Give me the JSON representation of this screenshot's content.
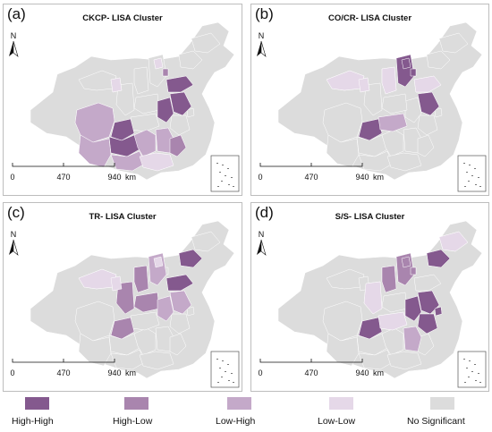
{
  "colors": {
    "high_high": "#84598e",
    "high_low": "#a985ae",
    "low_high": "#c4a9c9",
    "low_low": "#e5d8e8",
    "no_significant": "#dcdcdc",
    "border": "#ffffff"
  },
  "panels": [
    {
      "letter": "(a)",
      "title": "CKCP- LISA Cluster",
      "scale": {
        "ticks": [
          "0",
          "470",
          "940"
        ],
        "unit": "km"
      },
      "north": "N",
      "highlights": [
        "anhui:hh",
        "jiangsu:hh",
        "shandong:hh",
        "chongqing:hh",
        "guizhou:hh",
        "sichuan:lh",
        "yunnan:lh",
        "hunan:lh",
        "guangxi:lh",
        "jiangxi:lh",
        "fujian:hl",
        "ningxia:ll",
        "beijing:ll",
        "tianjin:hl",
        "guangdong:ll"
      ]
    },
    {
      "letter": "(b)",
      "title": "CO/CR- LISA Cluster",
      "scale": {
        "ticks": [
          "0",
          "470",
          "940"
        ],
        "unit": "km"
      },
      "north": "N",
      "highlights": [
        "hebei:hh",
        "beijing:hh",
        "tianjin:hh",
        "jiangsu:hh",
        "chongqing:hh",
        "hubei:lh",
        "gansu:ll",
        "ningxia:ll",
        "shanxi:ll",
        "shandong:ll"
      ]
    },
    {
      "letter": "(c)",
      "title": "TR- LISA Cluster",
      "scale": {
        "ticks": [
          "0",
          "470",
          "940"
        ],
        "unit": "km"
      },
      "north": "N",
      "highlights": [
        "liaoning:hh",
        "shandong:hh",
        "shanxi:hl",
        "henan:hl",
        "shaanxi:hl",
        "chongqing:hl",
        "hebei:lh",
        "anhui:lh",
        "jiangsu:lh",
        "gansu:ll",
        "ningxia:ll",
        "beijing:ll"
      ]
    },
    {
      "letter": "(d)",
      "title": "S/S- LISA Cluster",
      "scale": {
        "ticks": [
          "0",
          "470",
          "940"
        ],
        "unit": "km"
      },
      "north": "N",
      "highlights": [
        "liaoning:hh",
        "jiangsu:hh",
        "anhui:hh",
        "shanghai:hh",
        "zhejiang:hh",
        "chongqing:hh",
        "hebei:hl",
        "shanxi:hl",
        "jiangxi:lh",
        "hubei:ll",
        "jilin:ll",
        "shaanxi:ll",
        "beijing:hl",
        "tianjin:hl"
      ]
    }
  ],
  "legend": [
    {
      "label": "High-High",
      "color": "#84598e"
    },
    {
      "label": "High-Low",
      "color": "#a985ae"
    },
    {
      "label": "Low-High",
      "color": "#c4a9c9"
    },
    {
      "label": "Low-Low",
      "color": "#e5d8e8"
    },
    {
      "label": "No Significant",
      "color": "#dcdcdc"
    }
  ]
}
